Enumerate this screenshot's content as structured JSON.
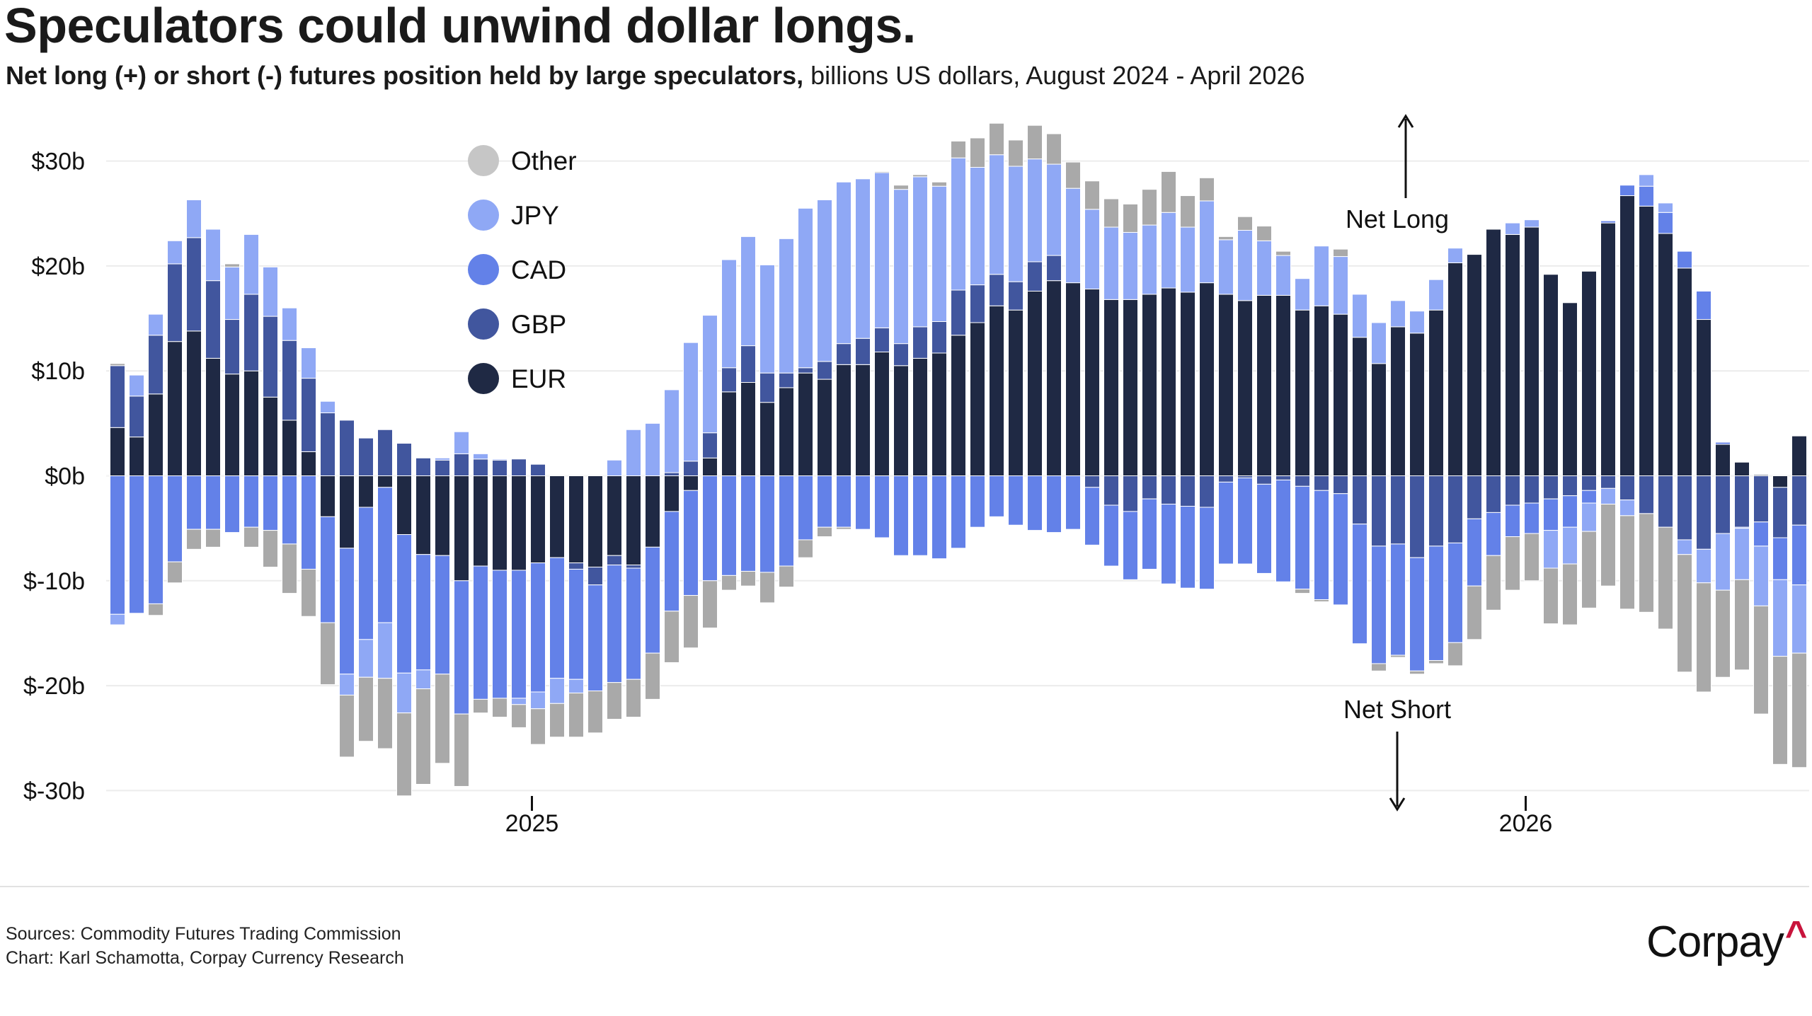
{
  "title": "Speculators could unwind dollar longs.",
  "subtitle": {
    "bold": "Net long (+) or short (-) futures position held by large speculators,",
    "regular": " billions US dollars, August 2024 - April 2026"
  },
  "footer": {
    "sources": "Sources: Commodity Futures Trading Commission",
    "chart_credit": "Chart: Karl Schamotta, Corpay Currency Research",
    "logo_text": "Corpay",
    "logo_caret": "^"
  },
  "annotations": {
    "net_long": "Net Long",
    "net_short": "Net Short"
  },
  "chart_data": {
    "type": "bar",
    "stacked": true,
    "title": "Speculators could unwind dollar longs.",
    "ylabel": "",
    "xlabel": "",
    "ylim": [
      -30,
      30
    ],
    "y_ticks": [
      {
        "value": 30,
        "label": "$30b"
      },
      {
        "value": 20,
        "label": "$20b"
      },
      {
        "value": 10,
        "label": "$10b"
      },
      {
        "value": 0,
        "label": "$0b"
      },
      {
        "value": -10,
        "label": "$-10b"
      },
      {
        "value": -20,
        "label": "$-20b"
      },
      {
        "value": -30,
        "label": "$-30b"
      }
    ],
    "x_ticks": [
      "2025",
      "2026"
    ],
    "grid": true,
    "legend_placement": "top-left",
    "legend": [
      "Other",
      "JPY",
      "CAD",
      "GBP",
      "EUR"
    ],
    "series": [
      {
        "name": "EUR",
        "color": "#1f2944",
        "values": [
          4.6,
          3.7,
          7.8,
          12.8,
          13.8,
          11.2,
          9.7,
          10.0,
          7.5,
          5.3,
          2.3,
          -3.9,
          -6.9,
          -3.0,
          -1.1,
          -5.6,
          -7.5,
          -7.6,
          -10.0,
          -8.6,
          -9.0,
          -9.0,
          -8.3,
          -7.8,
          -8.3,
          -8.7,
          -7.6,
          -8.5,
          -6.8,
          -3.4,
          -1.4,
          1.7,
          8.0,
          8.9,
          7.0,
          8.4,
          9.8,
          9.2,
          10.6,
          10.6,
          11.8,
          10.5,
          11.2,
          11.7,
          13.4,
          14.6,
          16.2,
          15.8,
          17.6,
          18.6,
          18.4,
          17.8,
          16.8,
          16.8,
          17.3,
          17.9,
          17.5,
          18.4,
          17.3,
          16.7,
          17.2,
          17.2,
          15.8,
          16.2,
          15.4,
          13.2,
          10.7,
          14.2,
          13.6,
          15.8,
          20.3,
          21.1,
          23.5,
          23.0,
          23.7,
          19.2,
          16.5,
          19.5,
          24.1,
          26.7,
          25.7,
          23.1,
          19.8,
          14.9,
          3.0,
          1.3,
          0.1,
          -1.1,
          3.8
        ]
      },
      {
        "name": "GBP",
        "color": "#41569e",
        "values": [
          5.9,
          3.9,
          5.6,
          7.4,
          8.9,
          7.4,
          5.2,
          7.3,
          7.7,
          7.6,
          7.0,
          6.0,
          5.3,
          3.6,
          4.4,
          3.1,
          1.7,
          1.5,
          2.1,
          1.6,
          1.5,
          1.6,
          1.1,
          0,
          -0.6,
          -1.7,
          -0.9,
          -0.3,
          0,
          0.3,
          1.4,
          2.4,
          2.3,
          3.5,
          2.8,
          1.4,
          0.5,
          1.7,
          2.0,
          2.5,
          2.3,
          2.1,
          3.0,
          3.0,
          4.3,
          3.6,
          3.0,
          2.7,
          2.8,
          2.4,
          0,
          -1.1,
          -2.8,
          -3.4,
          -2.2,
          -2.7,
          -2.9,
          -3.0,
          -0.6,
          -0.2,
          -0.8,
          -0.4,
          -1.0,
          -1.4,
          -1.7,
          -4.6,
          -6.7,
          -6.5,
          -7.8,
          -6.7,
          -6.4,
          -4.1,
          -3.5,
          -2.8,
          -2.6,
          -2.2,
          -1.9,
          -1.4,
          -1.2,
          -2.3,
          -3.6,
          -4.9,
          -6.1,
          -7.0,
          -5.5,
          -4.9,
          -4.4,
          -4.8,
          -4.7
        ]
      },
      {
        "name": "CAD",
        "color": "#6381e8",
        "values": [
          -13.2,
          -13.1,
          -12.2,
          -8.2,
          -5.1,
          -5.1,
          -5.4,
          -4.9,
          -5.2,
          -6.5,
          -8.9,
          -10.1,
          -12.0,
          -12.6,
          -12.9,
          -13.2,
          -11.0,
          -11.3,
          -12.7,
          -12.7,
          -12.2,
          -12.2,
          -12.3,
          -11.5,
          -10.5,
          -10.1,
          -11.2,
          -10.6,
          -10.1,
          -9.5,
          -10.0,
          -10.0,
          -9.5,
          -9.1,
          -9.2,
          -8.6,
          -6.1,
          -4.9,
          -4.9,
          -5.1,
          -5.9,
          -7.6,
          -7.6,
          -7.9,
          -6.9,
          -4.9,
          -3.9,
          -4.7,
          -5.2,
          -5.4,
          -5.1,
          -5.5,
          -5.8,
          -6.5,
          -6.7,
          -7.6,
          -7.8,
          -7.8,
          -7.8,
          -8.2,
          -8.5,
          -9.7,
          -9.8,
          -10.4,
          -10.6,
          -11.4,
          -11.2,
          -10.6,
          -10.8,
          -10.9,
          -9.5,
          -6.4,
          -4.1,
          -3.0,
          -2.9,
          -3.0,
          -3.0,
          -1.2,
          0.2,
          1.0,
          1.9,
          2.0,
          1.6,
          2.7,
          0.2,
          -0.1,
          -2.3,
          -4.0,
          -5.7
        ]
      },
      {
        "name": "JPY",
        "color": "#8fa8f5",
        "values": [
          -1.0,
          2.0,
          2.0,
          2.2,
          3.6,
          4.9,
          5.0,
          5.7,
          4.7,
          3.1,
          2.9,
          1.1,
          -2.0,
          -3.6,
          -5.3,
          -3.8,
          -1.8,
          0.2,
          2.1,
          0.5,
          0.1,
          -0.6,
          -1.6,
          -2.4,
          -1.3,
          0,
          1.5,
          4.4,
          5.0,
          7.9,
          11.3,
          11.2,
          10.3,
          10.4,
          10.3,
          12.8,
          15.2,
          15.4,
          15.4,
          15.2,
          14.8,
          14.7,
          14.3,
          12.9,
          12.6,
          11.2,
          11.4,
          11.0,
          9.8,
          8.7,
          9.0,
          7.6,
          6.9,
          6.4,
          6.6,
          7.2,
          6.2,
          7.8,
          5.2,
          6.7,
          5.2,
          3.8,
          3.0,
          5.7,
          5.5,
          4.1,
          3.9,
          2.5,
          2.1,
          2.9,
          1.4,
          0,
          0,
          1.1,
          0.7,
          -3.6,
          -3.5,
          -2.7,
          -1.5,
          -1.5,
          1.1,
          0.9,
          -1.4,
          -3.2,
          -5.4,
          -4.9,
          -5.7,
          -7.3,
          -6.5
        ]
      },
      {
        "name": "Other",
        "color": "#a9a9a9",
        "legend_color": "#c6c6c6",
        "values": [
          0.2,
          0,
          -1.1,
          -2.0,
          -1.9,
          -1.7,
          0.3,
          -1.9,
          -3.5,
          -4.7,
          -4.5,
          -5.9,
          -5.9,
          -6.1,
          -6.7,
          -7.9,
          -9.1,
          -8.5,
          -6.9,
          -1.3,
          -1.8,
          -2.2,
          -3.4,
          -3.2,
          -4.2,
          -4.0,
          -3.5,
          -3.6,
          -4.4,
          -4.9,
          -5.0,
          -4.5,
          -1.4,
          -1.4,
          -2.9,
          -2.0,
          -1.7,
          -0.9,
          -0.2,
          0,
          0.1,
          0.4,
          0.2,
          0.4,
          1.6,
          2.8,
          3.0,
          2.5,
          3.2,
          2.9,
          2.5,
          2.7,
          2.7,
          2.7,
          3.4,
          3.9,
          3.0,
          2.2,
          0.3,
          1.3,
          1.4,
          0.4,
          -0.4,
          -0.2,
          0.7,
          0,
          -0.7,
          -0.2,
          -0.3,
          -0.3,
          -2.2,
          -5.1,
          -5.2,
          -5.1,
          -4.5,
          -5.3,
          -5.8,
          -7.3,
          -7.8,
          -8.9,
          -9.4,
          -9.7,
          -11.2,
          -10.4,
          -8.3,
          -8.6,
          -10.3,
          -10.3,
          -10.9
        ]
      }
    ]
  }
}
